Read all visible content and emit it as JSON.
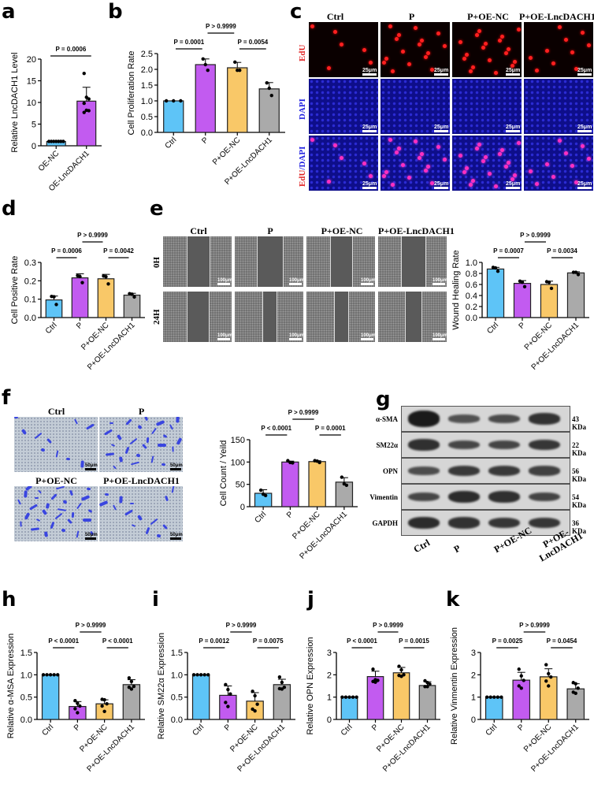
{
  "colors": {
    "ctrl": "#5ec4f7",
    "p": "#c25bf0",
    "p_oe_nc": "#f9c868",
    "p_oe_lnc": "#aaaaaa",
    "oe_nc": "#5ec4f7",
    "oe_lnc": "#c25bf0"
  },
  "panel_labels": [
    "a",
    "b",
    "c",
    "d",
    "e",
    "f",
    "g",
    "h",
    "i",
    "j",
    "k"
  ],
  "groups": [
    "Ctrl",
    "P",
    "P+OE-NC",
    "P+OE-LncDACH1"
  ],
  "panel_c": {
    "columns": [
      "Ctrl",
      "P",
      "P+OE-NC",
      "P+OE-LncDACH1"
    ],
    "rows": [
      {
        "label": "EdU",
        "label_color": "#e02020"
      },
      {
        "label": "DAPI",
        "label_color": "#2020e0"
      },
      {
        "label_a": "EdU",
        "label_b": "/DAPI"
      }
    ],
    "scale_bar": "25μm"
  },
  "panel_e": {
    "columns": [
      "Ctrl",
      "P",
      "P+OE-NC",
      "P+OE-LncDACH1"
    ],
    "rows": [
      "0H",
      "24H"
    ],
    "scale_bar": "100μm"
  },
  "panel_f": {
    "images": [
      "Ctrl",
      "P",
      "P+OE-NC",
      "P+OE-LncDACH1"
    ],
    "scale_bar": "50μm"
  },
  "panel_g": {
    "proteins": [
      {
        "name": "α-SMA",
        "kda": "43 KDa"
      },
      {
        "name": "SM22α",
        "kda": "22 KDa"
      },
      {
        "name": "OPN",
        "kda": "56 KDa"
      },
      {
        "name": "Vimentin",
        "kda": "54 KDa"
      },
      {
        "name": "GAPDH",
        "kda": "36 KDa"
      }
    ],
    "lanes": [
      "Ctrl",
      "P",
      "P+OE-NC",
      "P+OE-\nLncDACH1"
    ],
    "lane_labels": [
      "Ctrl",
      "P",
      "P+OE-NC",
      "P+OE-",
      "LncDACH1"
    ]
  },
  "chart_data": [
    {
      "panel": "a",
      "type": "bar",
      "title": "",
      "xlabel": "",
      "ylabel": "Relative LncDACH1 Level",
      "categories": [
        "OE-NC",
        "OE-LncDACH1"
      ],
      "values": [
        1.0,
        10.3
      ],
      "errors": [
        0.0,
        3.2
      ],
      "points": [
        [
          1,
          1,
          1,
          1,
          1,
          1,
          1
        ],
        [
          16.7,
          11.2,
          10.8,
          9.8,
          8.2,
          8.1,
          7.7
        ]
      ],
      "ylim": [
        0,
        20
      ],
      "yticks": [
        0,
        5,
        10,
        15,
        20
      ],
      "comparisons": [
        {
          "from": 0,
          "to": 1,
          "text": "P = 0.0006",
          "level": 0
        }
      ]
    },
    {
      "panel": "b",
      "type": "bar",
      "ylabel": "Cell Proliferation Rate",
      "categories": [
        "Ctrl",
        "P",
        "P+OE-NC",
        "P+OE-LncDACH1"
      ],
      "values": [
        1.0,
        2.15,
        2.05,
        1.38
      ],
      "errors": [
        0.0,
        0.18,
        0.17,
        0.2
      ],
      "points": [
        [
          1,
          1,
          1
        ],
        [
          2.33,
          2.15,
          1.97
        ],
        [
          2.23,
          1.97,
          1.97
        ],
        [
          1.57,
          1.4,
          1.17
        ]
      ],
      "ylim": [
        0,
        2.5
      ],
      "yticks": [
        0.0,
        0.5,
        1.0,
        1.5,
        2.0,
        2.5
      ],
      "comparisons": [
        {
          "from": 0,
          "to": 1,
          "text": "P = 0.0001",
          "level": 0
        },
        {
          "from": 2,
          "to": 3,
          "text": "P = 0.0054",
          "level": 0
        },
        {
          "from": 1,
          "to": 2,
          "text": "P > 0.9999",
          "level": 1
        }
      ]
    },
    {
      "panel": "d",
      "type": "bar",
      "ylabel": "Cell Positive Rate",
      "categories": [
        "Ctrl",
        "P",
        "P+OE-NC",
        "P+OE-LncDACH1"
      ],
      "values": [
        0.096,
        0.216,
        0.211,
        0.122
      ],
      "errors": [
        0.021,
        0.022,
        0.024,
        0.01
      ],
      "points": [
        [
          0.115,
          0.113,
          0.071
        ],
        [
          0.228,
          0.223,
          0.19
        ],
        [
          0.226,
          0.222,
          0.183
        ],
        [
          0.13,
          0.127,
          0.112
        ]
      ],
      "ylim": [
        0,
        0.3
      ],
      "yticks": [
        0.0,
        0.1,
        0.2,
        0.3
      ],
      "comparisons": [
        {
          "from": 0,
          "to": 1,
          "text": "P = 0.0006",
          "level": 0
        },
        {
          "from": 2,
          "to": 3,
          "text": "P = 0.0042",
          "level": 0
        },
        {
          "from": 1,
          "to": 2,
          "text": "P > 0.9999",
          "level": 1
        }
      ]
    },
    {
      "panel": "e",
      "type": "bar",
      "ylabel": "Wound Healing Rate",
      "categories": [
        "Ctrl",
        "P",
        "P+OE-NC",
        "P+OE-LncDACH1"
      ],
      "values": [
        0.88,
        0.62,
        0.6,
        0.81
      ],
      "errors": [
        0.03,
        0.05,
        0.06,
        0.02
      ],
      "points": [
        [
          0.91,
          0.9,
          0.84
        ],
        [
          0.66,
          0.64,
          0.56
        ],
        [
          0.65,
          0.64,
          0.53
        ],
        [
          0.82,
          0.82,
          0.78
        ]
      ],
      "ylim": [
        0,
        1.0
      ],
      "yticks": [
        0.0,
        0.2,
        0.4,
        0.6,
        0.8,
        1.0
      ],
      "comparisons": [
        {
          "from": 0,
          "to": 1,
          "text": "P = 0.0007",
          "level": 0
        },
        {
          "from": 2,
          "to": 3,
          "text": "P = 0.0034",
          "level": 0
        },
        {
          "from": 1,
          "to": 2,
          "text": "P > 0.9999",
          "level": 1
        }
      ]
    },
    {
      "panel": "f",
      "type": "bar",
      "ylabel": "Cell Count / Yeild",
      "categories": [
        "Ctrl",
        "P",
        "P+OE-NC",
        "P+OE-LncDACH1"
      ],
      "values": [
        30,
        100,
        101,
        55
      ],
      "errors": [
        8,
        2,
        2,
        10
      ],
      "points": [
        [
          37,
          28,
          25
        ],
        [
          103,
          99,
          98
        ],
        [
          103,
          102,
          99
        ],
        [
          66,
          51,
          48
        ]
      ],
      "ylim": [
        0,
        150
      ],
      "yticks": [
        0,
        50,
        100,
        150
      ],
      "comparisons": [
        {
          "from": 0,
          "to": 1,
          "text": "P < 0.0001",
          "level": 0
        },
        {
          "from": 2,
          "to": 3,
          "text": "P = 0.0001",
          "level": 0
        },
        {
          "from": 1,
          "to": 2,
          "text": "P > 0.9999",
          "level": 1
        }
      ]
    },
    {
      "panel": "h",
      "type": "bar",
      "ylabel": "Relative α-MSA Expression",
      "categories": [
        "Ctrl",
        "P",
        "P+OE-NC",
        "P+OE-LncDACH1"
      ],
      "values": [
        1.0,
        0.29,
        0.35,
        0.78
      ],
      "errors": [
        0.0,
        0.11,
        0.09,
        0.11
      ],
      "points": [
        [
          1,
          1,
          1,
          1,
          1
        ],
        [
          0.42,
          0.36,
          0.3,
          0.24,
          0.15
        ],
        [
          0.45,
          0.44,
          0.35,
          0.3,
          0.18
        ],
        [
          0.93,
          0.85,
          0.74,
          0.72,
          0.68
        ]
      ],
      "ylim": [
        0,
        1.5
      ],
      "yticks": [
        0.0,
        0.5,
        1.0,
        1.5
      ],
      "comparisons": [
        {
          "from": 0,
          "to": 1,
          "text": "P < 0.0001",
          "level": 0
        },
        {
          "from": 2,
          "to": 3,
          "text": "P < 0.0001",
          "level": 0
        },
        {
          "from": 1,
          "to": 2,
          "text": "P > 0.9999",
          "level": 1
        }
      ]
    },
    {
      "panel": "i",
      "type": "bar",
      "ylabel": "Relative SM22α Expression",
      "categories": [
        "Ctrl",
        "P",
        "P+OE-NC",
        "P+OE-LncDACH1"
      ],
      "values": [
        1.0,
        0.54,
        0.41,
        0.78
      ],
      "errors": [
        0.0,
        0.21,
        0.19,
        0.12
      ],
      "points": [
        [
          1,
          1,
          1,
          1,
          1
        ],
        [
          0.78,
          0.67,
          0.57,
          0.38,
          0.29
        ],
        [
          0.63,
          0.53,
          0.34,
          0.23,
          0.19
        ],
        [
          0.95,
          0.83,
          0.72,
          0.69,
          0.68
        ]
      ],
      "ylim": [
        0,
        1.5
      ],
      "yticks": [
        0.0,
        0.5,
        1.0,
        1.5
      ],
      "comparisons": [
        {
          "from": 0,
          "to": 1,
          "text": "P = 0.0012",
          "level": 0
        },
        {
          "from": 2,
          "to": 3,
          "text": "P = 0.0075",
          "level": 0
        },
        {
          "from": 1,
          "to": 2,
          "text": "P > 0.9999",
          "level": 1
        }
      ]
    },
    {
      "panel": "j",
      "type": "bar",
      "ylabel": "Relative OPN Expression",
      "categories": [
        "Ctrl",
        "P",
        "P+OE-NC",
        "P+OE-LncDACH1"
      ],
      "values": [
        1.0,
        1.92,
        2.09,
        1.52
      ],
      "errors": [
        0.0,
        0.24,
        0.24,
        0.17
      ],
      "points": [
        [
          1,
          1,
          1,
          1,
          1
        ],
        [
          2.25,
          1.78,
          1.75,
          1.7,
          1.67
        ],
        [
          2.38,
          2.22,
          2.0,
          1.97,
          1.93
        ],
        [
          1.73,
          1.65,
          1.58,
          1.47,
          1.47
        ]
      ],
      "ylim": [
        0,
        3
      ],
      "yticks": [
        0,
        1,
        2,
        3
      ],
      "comparisons": [
        {
          "from": 0,
          "to": 1,
          "text": "P < 0.0001",
          "level": 0
        },
        {
          "from": 2,
          "to": 3,
          "text": "P = 0.0015",
          "level": 0
        },
        {
          "from": 1,
          "to": 2,
          "text": "P > 0.9999",
          "level": 1
        }
      ]
    },
    {
      "panel": "k",
      "type": "bar",
      "ylabel": "Relative Vinmentin Expression",
      "categories": [
        "Ctrl",
        "P",
        "P+OE-NC",
        "P+OE-LncDACH1"
      ],
      "values": [
        1.0,
        1.76,
        1.91,
        1.37
      ],
      "errors": [
        0.0,
        0.35,
        0.36,
        0.23
      ],
      "points": [
        [
          1,
          1,
          1,
          1,
          1
        ],
        [
          2.25,
          1.95,
          1.75,
          1.5,
          1.4
        ],
        [
          2.45,
          2.05,
          1.9,
          1.72,
          1.5
        ],
        [
          1.65,
          1.6,
          1.4,
          1.22,
          1.17
        ]
      ],
      "ylim": [
        0,
        3
      ],
      "yticks": [
        0,
        1,
        2,
        3
      ],
      "comparisons": [
        {
          "from": 0,
          "to": 1,
          "text": "P = 0.0025",
          "level": 0
        },
        {
          "from": 2,
          "to": 3,
          "text": "P = 0.0454",
          "level": 0
        },
        {
          "from": 1,
          "to": 2,
          "text": "P > 0.9999",
          "level": 1
        }
      ]
    }
  ]
}
